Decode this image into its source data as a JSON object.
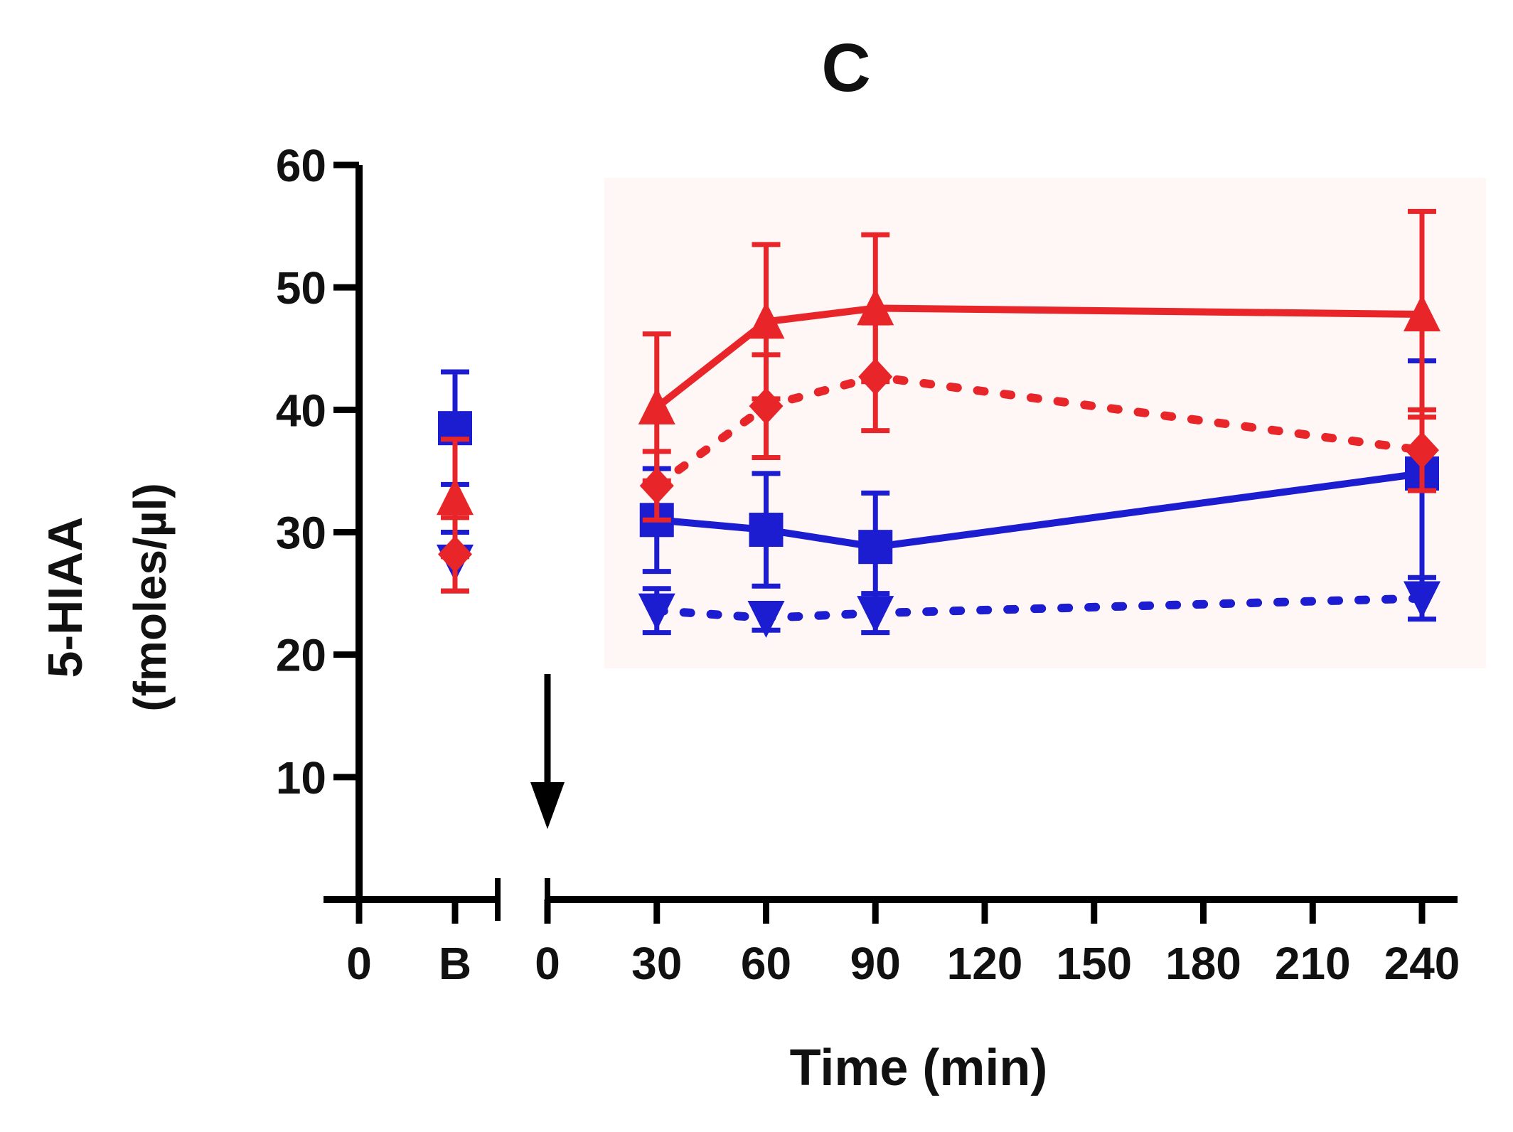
{
  "chart_data": {
    "type": "line",
    "title": "C",
    "xlabel": "Time (min)",
    "ylabel": "5-HIAA",
    "ylabel_units": "(fmoles/µl)",
    "ylim": [
      0,
      60
    ],
    "yticks": [
      10,
      20,
      30,
      40,
      50,
      60
    ],
    "ytick_labels": [
      "10",
      "20",
      "30",
      "40",
      "50",
      "60"
    ],
    "xlim": [
      0,
      240
    ],
    "xticks": [
      0,
      30,
      60,
      90,
      120,
      150,
      180,
      210,
      240
    ],
    "xtick_labels": [
      "0",
      "30",
      "60",
      "90",
      "120",
      "150",
      "180",
      "210",
      "240"
    ],
    "baseline_ticks": [
      "0",
      "B"
    ],
    "injection_marker_x": 0,
    "series": [
      {
        "name": "red solid (triangle)",
        "color": "#e8262a",
        "line": "solid",
        "marker": "triangle-up",
        "baseline": {
          "y": 32.8,
          "err": 4.8
        },
        "x": [
          30,
          60,
          90,
          240
        ],
        "y": [
          40.2,
          47.2,
          48.3,
          47.8
        ],
        "err": [
          6.0,
          6.3,
          6.0,
          8.4
        ]
      },
      {
        "name": "red dotted (diamond)",
        "color": "#e8262a",
        "line": "dotted",
        "marker": "diamond",
        "baseline": {
          "y": 28.2,
          "err": 3.0
        },
        "x": [
          30,
          60,
          90,
          240
        ],
        "y": [
          33.8,
          40.3,
          42.7,
          36.7
        ],
        "err": [
          2.8,
          4.2,
          4.4,
          3.3
        ]
      },
      {
        "name": "blue solid (square)",
        "color": "#1c1cd0",
        "line": "solid",
        "marker": "square",
        "baseline": {
          "y": 38.5,
          "err": 4.6
        },
        "x": [
          30,
          60,
          90,
          240
        ],
        "y": [
          31.0,
          30.2,
          28.8,
          34.8
        ],
        "err": [
          4.2,
          4.6,
          4.4,
          9.2
        ]
      },
      {
        "name": "blue dotted (triangle-down)",
        "color": "#1c1cd0",
        "line": "dotted",
        "marker": "triangle-down",
        "baseline": {
          "y": 27.6,
          "err": 2.4
        },
        "x": [
          30,
          60,
          90,
          240
        ],
        "y": [
          23.6,
          23.0,
          23.4,
          24.6
        ],
        "err": [
          1.8,
          1.0,
          1.6,
          1.7
        ]
      }
    ]
  }
}
